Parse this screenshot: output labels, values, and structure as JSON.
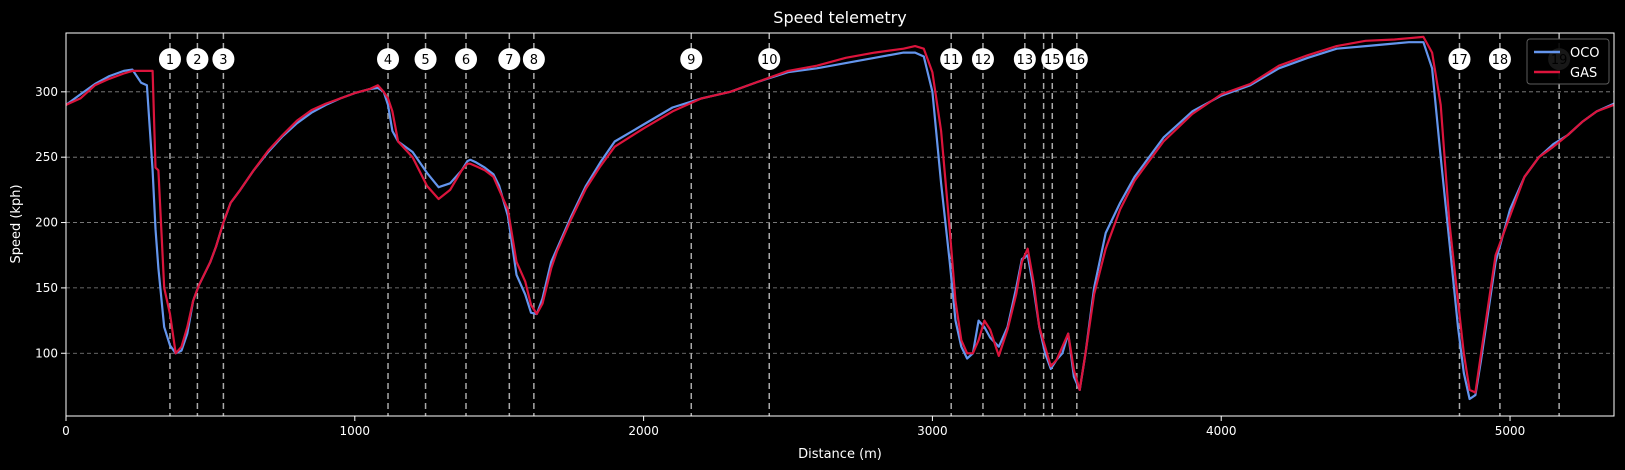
{
  "chart_data": {
    "type": "line",
    "title": "Speed telemetry",
    "xlabel": "Distance (m)",
    "ylabel": "Speed (kph)",
    "xlim": [
      0,
      5360
    ],
    "ylim": [
      52,
      345
    ],
    "xticks": [
      0,
      1000,
      2000,
      3000,
      4000,
      5000
    ],
    "yticks": [
      100,
      150,
      200,
      250,
      300
    ],
    "grid": "horizontal dashed",
    "legend_position": "top-right",
    "background": "#000000",
    "corners": [
      {
        "label": "1",
        "x": 360
      },
      {
        "label": "2",
        "x": 455
      },
      {
        "label": "3",
        "x": 545
      },
      {
        "label": "4",
        "x": 1115
      },
      {
        "label": "5",
        "x": 1245
      },
      {
        "label": "6",
        "x": 1385
      },
      {
        "label": "7",
        "x": 1535
      },
      {
        "label": "8",
        "x": 1620
      },
      {
        "label": "9",
        "x": 2165
      },
      {
        "label": "10",
        "x": 2435
      },
      {
        "label": "11",
        "x": 3065
      },
      {
        "label": "12",
        "x": 3175
      },
      {
        "label": "13",
        "x": 3320
      },
      {
        "label": "",
        "x": 3385
      },
      {
        "label": "15",
        "x": 3415
      },
      {
        "label": "16",
        "x": 3500
      },
      {
        "label": "17",
        "x": 4825
      },
      {
        "label": "18",
        "x": 4965
      },
      {
        "label": "19",
        "x": 5170
      }
    ],
    "series": [
      {
        "name": "OCO",
        "color": "#6495ED",
        "x": [
          0,
          50,
          100,
          150,
          200,
          230,
          260,
          280,
          300,
          310,
          320,
          340,
          360,
          380,
          400,
          420,
          440,
          460,
          500,
          520,
          545,
          570,
          600,
          650,
          700,
          750,
          800,
          850,
          900,
          950,
          1000,
          1050,
          1080,
          1100,
          1115,
          1130,
          1150,
          1200,
          1250,
          1290,
          1330,
          1370,
          1390,
          1400,
          1420,
          1450,
          1480,
          1500,
          1530,
          1560,
          1590,
          1610,
          1630,
          1650,
          1680,
          1700,
          1750,
          1800,
          1850,
          1900,
          2000,
          2100,
          2200,
          2300,
          2400,
          2500,
          2600,
          2700,
          2800,
          2900,
          2940,
          2970,
          3000,
          3030,
          3060,
          3080,
          3100,
          3120,
          3140,
          3160,
          3180,
          3200,
          3230,
          3260,
          3290,
          3310,
          3330,
          3350,
          3370,
          3390,
          3410,
          3430,
          3450,
          3470,
          3490,
          3510,
          3530,
          3560,
          3600,
          3650,
          3700,
          3800,
          3900,
          4000,
          4100,
          4200,
          4300,
          4400,
          4500,
          4600,
          4650,
          4700,
          4730,
          4760,
          4790,
          4820,
          4840,
          4860,
          4880,
          4900,
          4950,
          5000,
          5050,
          5100,
          5150,
          5200,
          5250,
          5300,
          5360
        ],
        "values": [
          290,
          298,
          306,
          312,
          316,
          317,
          307,
          305,
          240,
          195,
          165,
          120,
          106,
          100,
          102,
          115,
          140,
          152,
          170,
          182,
          200,
          215,
          224,
          240,
          254,
          266,
          276,
          284,
          290,
          295,
          299,
          302,
          303,
          300,
          290,
          270,
          262,
          254,
          238,
          227,
          230,
          240,
          247,
          248,
          246,
          242,
          237,
          228,
          205,
          160,
          145,
          131,
          130,
          142,
          170,
          180,
          205,
          228,
          246,
          262,
          275,
          288,
          295,
          300,
          308,
          315,
          318,
          322,
          326,
          330,
          330,
          327,
          300,
          230,
          170,
          125,
          105,
          96,
          100,
          125,
          120,
          112,
          105,
          120,
          150,
          172,
          175,
          150,
          120,
          100,
          88,
          95,
          100,
          115,
          82,
          72,
          100,
          150,
          192,
          215,
          235,
          265,
          285,
          297,
          305,
          318,
          326,
          333,
          335,
          337,
          338,
          338,
          318,
          250,
          185,
          120,
          85,
          65,
          68,
          95,
          170,
          210,
          235,
          250,
          260,
          267,
          277,
          285,
          291
        ]
      },
      {
        "name": "GAS",
        "color": "#DC143C",
        "x": [
          0,
          50,
          100,
          150,
          200,
          230,
          260,
          280,
          300,
          310,
          320,
          340,
          360,
          380,
          400,
          420,
          440,
          460,
          500,
          520,
          545,
          570,
          600,
          650,
          700,
          750,
          800,
          850,
          900,
          950,
          1000,
          1050,
          1080,
          1100,
          1115,
          1130,
          1150,
          1200,
          1250,
          1290,
          1330,
          1370,
          1390,
          1400,
          1420,
          1450,
          1480,
          1500,
          1530,
          1560,
          1590,
          1610,
          1630,
          1650,
          1680,
          1700,
          1750,
          1800,
          1850,
          1900,
          2000,
          2100,
          2200,
          2300,
          2400,
          2500,
          2600,
          2700,
          2800,
          2900,
          2940,
          2970,
          3000,
          3030,
          3060,
          3080,
          3100,
          3120,
          3140,
          3160,
          3180,
          3200,
          3230,
          3260,
          3290,
          3310,
          3330,
          3350,
          3370,
          3390,
          3410,
          3430,
          3450,
          3470,
          3490,
          3510,
          3530,
          3560,
          3600,
          3650,
          3700,
          3800,
          3900,
          4000,
          4100,
          4200,
          4300,
          4400,
          4500,
          4600,
          4650,
          4700,
          4730,
          4760,
          4790,
          4820,
          4840,
          4860,
          4880,
          4900,
          4950,
          5000,
          5050,
          5100,
          5150,
          5200,
          5250,
          5300,
          5360
        ],
        "values": [
          290,
          295,
          305,
          310,
          314,
          316,
          316,
          316,
          316,
          242,
          240,
          150,
          130,
          100,
          105,
          120,
          140,
          152,
          170,
          182,
          200,
          215,
          224,
          240,
          255,
          267,
          278,
          286,
          291,
          295,
          299,
          302,
          305,
          300,
          295,
          285,
          262,
          250,
          228,
          218,
          225,
          240,
          245,
          245,
          243,
          240,
          235,
          225,
          210,
          170,
          155,
          137,
          130,
          138,
          165,
          178,
          203,
          226,
          243,
          258,
          272,
          285,
          295,
          300,
          308,
          316,
          320,
          326,
          330,
          333,
          335,
          333,
          315,
          270,
          195,
          140,
          110,
          100,
          100,
          110,
          125,
          118,
          98,
          118,
          145,
          170,
          180,
          155,
          120,
          105,
          90,
          95,
          105,
          115,
          87,
          72,
          100,
          145,
          180,
          210,
          232,
          262,
          283,
          298,
          306,
          320,
          328,
          335,
          339,
          340,
          341,
          342,
          330,
          290,
          200,
          140,
          100,
          72,
          70,
          100,
          175,
          205,
          235,
          250,
          258,
          267,
          277,
          285,
          290
        ]
      }
    ]
  }
}
